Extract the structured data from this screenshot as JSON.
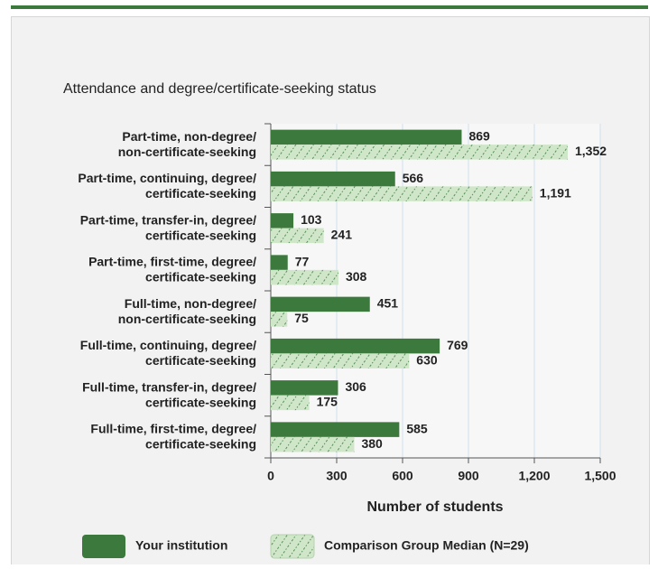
{
  "chart_data": {
    "type": "bar",
    "orientation": "horizontal",
    "title": "Attendance and degree/certificate-seeking status",
    "x_label": "Number of students",
    "categories": [
      [
        "Part-time, non-degree/",
        "non-certificate-seeking"
      ],
      [
        "Part-time, continuing, degree/",
        "certificate-seeking"
      ],
      [
        "Part-time, transfer-in, degree/",
        "certificate-seeking"
      ],
      [
        "Part-time, first-time, degree/",
        "certificate-seeking"
      ],
      [
        "Full-time, non-degree/",
        "non-certificate-seeking"
      ],
      [
        "Full-time, continuing, degree/",
        "certificate-seeking"
      ],
      [
        "Full-time, transfer-in, degree/",
        "certificate-seeking"
      ],
      [
        "Full-time, first-time, degree/",
        "certificate-seeking"
      ]
    ],
    "series": [
      {
        "name": "Your institution",
        "color": "#3b7a3c",
        "pattern": "solid",
        "values": [
          869,
          566,
          103,
          77,
          451,
          769,
          306,
          585
        ]
      },
      {
        "name": "Comparison Group Median (N=29)",
        "color": "#cfe6c9",
        "pattern": "hatch",
        "values": [
          1352,
          1191,
          241,
          308,
          75,
          630,
          175,
          380
        ],
        "value_labels": [
          "1,352",
          "1,191",
          "241",
          "308",
          "75",
          "630",
          "175",
          "380"
        ]
      }
    ],
    "xlim": [
      0,
      1500
    ],
    "xticks": [
      0,
      300,
      600,
      900,
      {
        "value": 1200,
        "label": "1,200"
      },
      {
        "value": 1500,
        "label": "1,500"
      }
    ],
    "grid": true
  }
}
